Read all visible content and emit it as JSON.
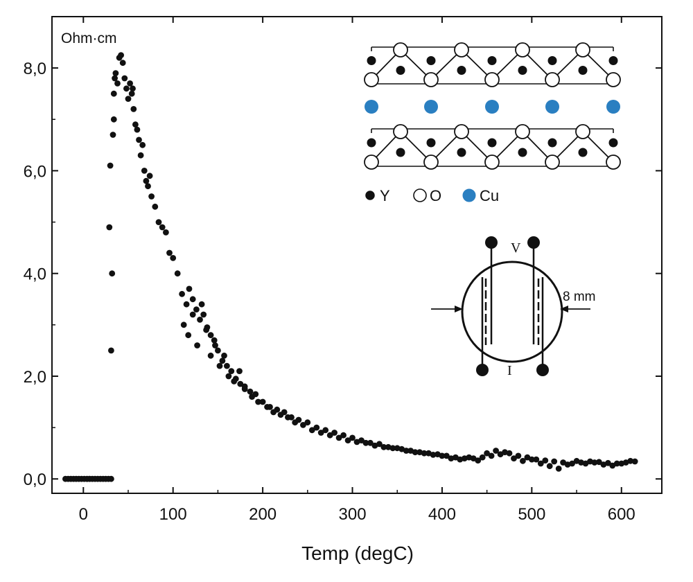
{
  "chart_data": {
    "type": "scatter",
    "title": "",
    "xlabel": "Temp (degC)",
    "ylabel": "",
    "y_unit_label": "Ohm·cm",
    "xlim": [
      -35,
      645
    ],
    "ylim": [
      -0.28,
      9.0
    ],
    "x_ticks": [
      0,
      100,
      200,
      300,
      400,
      500,
      600
    ],
    "x_tick_labels": [
      "0",
      "100",
      "200",
      "300",
      "400",
      "500",
      "600"
    ],
    "y_ticks": [
      0,
      2,
      4,
      6,
      8
    ],
    "y_tick_labels": [
      "0,0",
      "2,0",
      "4,0",
      "6,0",
      "8,0"
    ],
    "grid": false,
    "marker_color": "#111111",
    "series": [
      {
        "x": [
          -20,
          -17,
          -14,
          -11,
          -8,
          -5,
          -2,
          1,
          4,
          7,
          10,
          13,
          16,
          19,
          22,
          25,
          28,
          31,
          29,
          31,
          30,
          32,
          33,
          34,
          34,
          35,
          36,
          38,
          40,
          42,
          44,
          46,
          48,
          50,
          52,
          54,
          55,
          56,
          58,
          60,
          62,
          64,
          66,
          68,
          70,
          72,
          74,
          76,
          80,
          84,
          88,
          92,
          96,
          100,
          105,
          110,
          115,
          118,
          122,
          126,
          130,
          134,
          138,
          142,
          146,
          150,
          155,
          160,
          165,
          170,
          175,
          180,
          188,
          195,
          205,
          212,
          220,
          228,
          236,
          245,
          255,
          265,
          275,
          285,
          295,
          305,
          315,
          325,
          335,
          345,
          355,
          365,
          375,
          385,
          395,
          405,
          415,
          425,
          435,
          445,
          455,
          465,
          475,
          485,
          495,
          505,
          515,
          525,
          535,
          545,
          555,
          565,
          575,
          585,
          595,
          605,
          615,
          112,
          117,
          122,
          127,
          132,
          137,
          142,
          147,
          152,
          157,
          162,
          168,
          174,
          180,
          186,
          192,
          200,
          208,
          216,
          224,
          232,
          240,
          250,
          260,
          270,
          280,
          290,
          300,
          310,
          320,
          330,
          340,
          350,
          360,
          370,
          380,
          390,
          400,
          410,
          420,
          430,
          440,
          450,
          460,
          470,
          480,
          490,
          500,
          510,
          520,
          530,
          540,
          550,
          560,
          570,
          580,
          590,
          600,
          610
        ],
        "y": [
          0,
          0,
          0,
          0,
          0,
          0,
          0,
          0,
          0,
          0,
          0,
          0,
          0,
          0,
          0,
          0,
          0,
          0,
          4.9,
          2.5,
          6.1,
          4.0,
          6.7,
          7.0,
          7.5,
          7.8,
          7.9,
          7.7,
          8.2,
          8.25,
          8.1,
          7.8,
          7.6,
          7.4,
          7.7,
          7.5,
          7.6,
          7.2,
          6.9,
          6.8,
          6.6,
          6.3,
          6.5,
          6.0,
          5.8,
          5.7,
          5.9,
          5.5,
          5.3,
          5.0,
          4.9,
          4.8,
          4.4,
          4.3,
          4.0,
          3.6,
          3.4,
          3.7,
          3.5,
          3.3,
          3.1,
          3.2,
          2.95,
          2.8,
          2.7,
          2.5,
          2.3,
          2.2,
          2.1,
          1.95,
          1.85,
          1.75,
          1.6,
          1.5,
          1.4,
          1.3,
          1.25,
          1.2,
          1.1,
          1.05,
          0.95,
          0.9,
          0.85,
          0.8,
          0.75,
          0.72,
          0.7,
          0.65,
          0.62,
          0.6,
          0.58,
          0.55,
          0.52,
          0.5,
          0.48,
          0.45,
          0.42,
          0.4,
          0.4,
          0.42,
          0.45,
          0.48,
          0.5,
          0.45,
          0.42,
          0.38,
          0.36,
          0.34,
          0.32,
          0.3,
          0.32,
          0.34,
          0.33,
          0.31,
          0.3,
          0.32,
          0.34,
          3.0,
          2.8,
          3.2,
          2.6,
          3.4,
          2.9,
          2.4,
          2.6,
          2.2,
          2.4,
          2.0,
          1.9,
          2.1,
          1.8,
          1.7,
          1.65,
          1.5,
          1.4,
          1.35,
          1.3,
          1.2,
          1.15,
          1.1,
          1.0,
          0.95,
          0.9,
          0.85,
          0.8,
          0.75,
          0.7,
          0.68,
          0.62,
          0.6,
          0.55,
          0.52,
          0.5,
          0.47,
          0.45,
          0.4,
          0.38,
          0.42,
          0.36,
          0.5,
          0.55,
          0.52,
          0.4,
          0.35,
          0.38,
          0.3,
          0.25,
          0.2,
          0.28,
          0.35,
          0.3,
          0.32,
          0.28,
          0.26,
          0.3,
          0.35
        ]
      }
    ]
  },
  "structure": {
    "legend": [
      {
        "label": "Y",
        "color": "#111111",
        "kind": "filled"
      },
      {
        "label": "O",
        "color": "#ffffff",
        "kind": "open"
      },
      {
        "label": "Cu",
        "color": "#2a7fc1",
        "kind": "filled"
      }
    ]
  },
  "probe": {
    "voltage_label": "V",
    "current_label": "I",
    "diameter_label": "8 mm"
  }
}
